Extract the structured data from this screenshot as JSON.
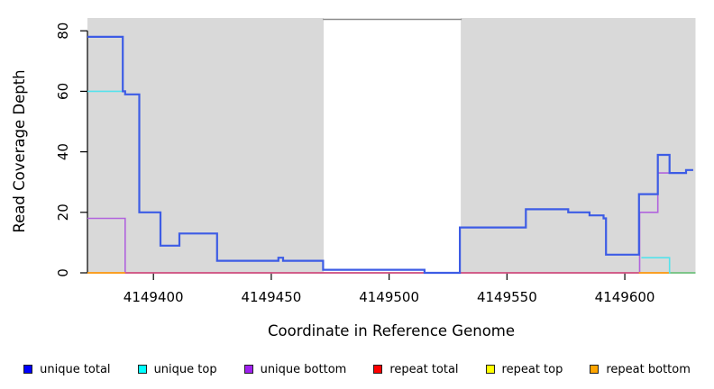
{
  "y_axis": {
    "label": "Read Coverage Depth",
    "range": [
      0,
      80
    ],
    "ticks": [
      0,
      20,
      40,
      60,
      80
    ]
  },
  "x_axis": {
    "label": "Coordinate in Reference Genome",
    "range": [
      4149372,
      4149630
    ],
    "ticks": [
      4149400,
      4149450,
      4149500,
      4149550,
      4149600
    ]
  },
  "chart_data": {
    "type": "line",
    "style": "step",
    "title": "",
    "xlabel": "Coordinate in Reference Genome",
    "ylabel": "Read Coverage Depth",
    "xlim": [
      4149372,
      4149630
    ],
    "ylim": [
      0,
      80
    ],
    "grid": false,
    "legend_position": "bottom",
    "background_regions": [
      {
        "name": "masked-region-left",
        "x0": 4149372,
        "x1": 4149472.3,
        "fill": "#d9d9d9",
        "stroke": "#c4c4c4"
      },
      {
        "name": "open-window",
        "x0": 4149472.3,
        "x1": 4149530.4,
        "fill": "#ffffff",
        "stroke": "#8c8c8c"
      },
      {
        "name": "masked-region-right",
        "x0": 4149530.4,
        "x1": 4149630,
        "fill": "#d9d9d9",
        "stroke": "#c4c4c4"
      }
    ],
    "series": [
      {
        "name": "repeat top",
        "color": "#ffff00",
        "width": 1.2,
        "segments": [
          {
            "points": [
              [
                4149372,
                0
              ]
            ],
            "end": 4149630
          }
        ]
      },
      {
        "name": "unique bottom",
        "color": "#b164dd",
        "width": 1.6,
        "segments": [
          {
            "points": [
              [
                4149372,
                18
              ],
              [
                4149388,
                0
              ]
            ],
            "end": 4149606
          },
          {
            "points": [
              [
                4149606,
                0
              ],
              [
                4149606.3,
                20
              ],
              [
                4149614,
                33
              ],
              [
                4149626,
                34
              ]
            ],
            "end": 4149629
          }
        ]
      },
      {
        "name": "repeat total",
        "color": "#d94f7e",
        "width": 1.4,
        "segments": [
          {
            "points": [
              [
                4149372,
                0
              ]
            ],
            "end": 4149630
          }
        ]
      },
      {
        "name": "unique top + repeat top overlap",
        "color": "#63d98c",
        "width": 1.5,
        "segments": [
          {
            "points": [
              [
                4149619,
                0
              ]
            ],
            "end": 4149630
          }
        ]
      },
      {
        "name": "repeat bottom",
        "color": "#ffa319",
        "width": 1.8,
        "segments": [
          {
            "points": [
              [
                4149372,
                0
              ]
            ],
            "end": 4149388
          },
          {
            "points": [
              [
                4149606,
                0
              ]
            ],
            "end": 4149619
          }
        ]
      },
      {
        "name": "unique top",
        "color": "#55e2ec",
        "width": 1.6,
        "segments": [
          {
            "points": [
              [
                4149372,
                60
              ]
            ],
            "end": 4149388
          },
          {
            "points": [
              [
                4149607,
                5
              ],
              [
                4149619,
                0
              ]
            ],
            "end": 4149619.3
          }
        ]
      },
      {
        "name": "unique total",
        "color": "#3d5ce5",
        "width": 2.2,
        "segments": [
          {
            "points": [
              [
                4149372,
                78
              ],
              [
                4149387,
                60
              ],
              [
                4149388,
                59
              ],
              [
                4149394,
                20
              ],
              [
                4149403,
                9
              ],
              [
                4149411,
                13
              ],
              [
                4149427,
                4
              ],
              [
                4149453,
                5
              ],
              [
                4149455,
                4
              ],
              [
                4149472,
                1
              ],
              [
                4149515,
                0
              ],
              [
                4149530,
                15
              ],
              [
                4149558,
                21
              ],
              [
                4149576,
                20
              ],
              [
                4149585,
                19
              ],
              [
                4149591,
                18
              ],
              [
                4149592,
                6
              ],
              [
                4149606,
                26
              ],
              [
                4149614,
                39
              ],
              [
                4149619,
                33
              ],
              [
                4149626,
                34
              ]
            ],
            "end": 4149629
          }
        ]
      }
    ]
  },
  "legend": {
    "items": [
      {
        "label": "unique total",
        "color": "#0000ff"
      },
      {
        "label": "unique top",
        "color": "#00ffff"
      },
      {
        "label": "unique bottom",
        "color": "#a020f0"
      },
      {
        "label": "repeat total",
        "color": "#ff0000"
      },
      {
        "label": "repeat top",
        "color": "#ffff00"
      },
      {
        "label": "repeat bottom",
        "color": "#ffa500"
      }
    ]
  }
}
